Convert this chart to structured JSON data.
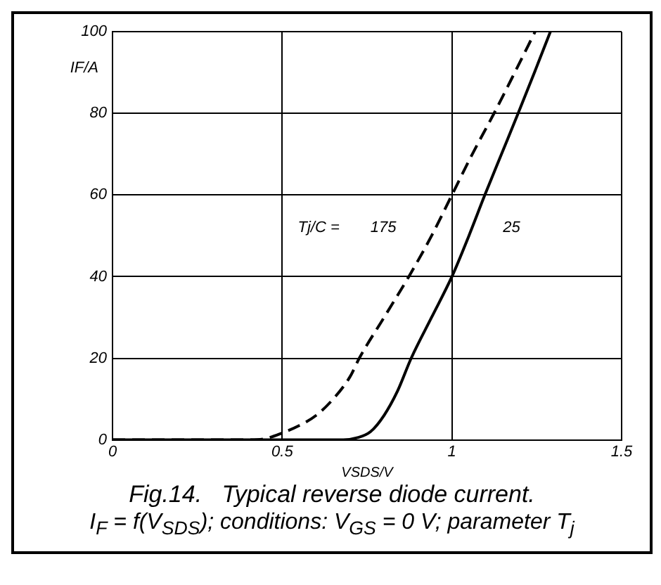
{
  "chart_data": {
    "type": "line",
    "title": "Fig.14.   Typical reverse diode current.",
    "subtitle": "I$_{F}$ = f(V$_{SDS}$); conditions: V$_{GS}$ = 0 V; parameter T$_{j}$",
    "xlabel": "VSDS/V",
    "ylabel": "IF/A",
    "legend_title": "Tj/C =",
    "series": [
      {
        "name": "175",
        "color": "#000000",
        "line_style": "dashed",
        "x": [
          0,
          0.4,
          0.45,
          0.5,
          0.55,
          0.6,
          0.65,
          0.7,
          0.727,
          0.8,
          0.873,
          0.94,
          1.0,
          1.06,
          1.124,
          1.185,
          1.245
        ],
        "values": [
          0,
          0,
          0.3,
          1.7,
          3.5,
          6,
          10,
          15.5,
          20,
          30,
          40,
          50,
          60,
          70,
          80,
          90,
          100
        ]
      },
      {
        "name": "25",
        "color": "#000000",
        "line_style": "solid",
        "x": [
          0,
          0.68,
          0.72,
          0.76,
          0.8,
          0.84,
          0.88,
          0.94,
          1.0,
          1.05,
          1.097,
          1.146,
          1.195,
          1.243,
          1.29
        ],
        "values": [
          0,
          0,
          0.5,
          2,
          6,
          12,
          20,
          30,
          40,
          50,
          60,
          70,
          80,
          90,
          100
        ]
      }
    ],
    "xlim": [
      0,
      1.5
    ],
    "xticks": [
      0,
      0.5,
      1,
      1.5
    ],
    "ylim": [
      0,
      100
    ],
    "yticks": [
      0,
      20,
      40,
      60,
      80,
      100
    ],
    "grid": true,
    "marker": "none",
    "legend": false
  }
}
